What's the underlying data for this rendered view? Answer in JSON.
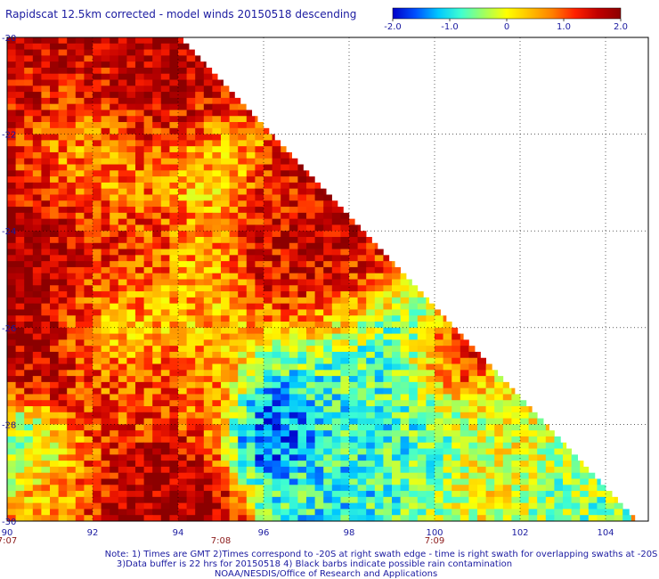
{
  "chart_data": {
    "type": "heatmap",
    "title": "Rapidscat 12.5km corrected - model winds 20150518 descending",
    "colorbar": {
      "range": [
        -2.0,
        2.0
      ],
      "tick_labels": [
        "-2.0",
        "-1.0",
        "0",
        "1.0",
        "2.0"
      ],
      "tick_values": [
        -2.0,
        -1.0,
        0.0,
        1.0,
        2.0
      ],
      "colors": [
        "#0000c8",
        "#0050ff",
        "#00c8ff",
        "#40ffd0",
        "#a0ff60",
        "#ffff00",
        "#ffc000",
        "#ff8000",
        "#ff2000",
        "#c00000",
        "#8c0000"
      ]
    },
    "x_axis": {
      "range": [
        90,
        105
      ],
      "tick_values": [
        90,
        92,
        94,
        96,
        98,
        100,
        102,
        104
      ],
      "tick_labels": [
        "90",
        "92",
        "94",
        "96",
        "98",
        "100",
        "102",
        "104"
      ]
    },
    "y_axis": {
      "range": [
        -30,
        -20
      ],
      "tick_values": [
        -20,
        -22,
        -24,
        -26,
        -28,
        -30
      ],
      "tick_labels": [
        "-20",
        "-22",
        "-24",
        "-26",
        "-28",
        "-30"
      ]
    },
    "time_labels": [
      {
        "x": 90,
        "label": "7:07"
      },
      {
        "x": 95,
        "label": "7:08"
      },
      {
        "x": 100,
        "label": "7:09"
      }
    ],
    "swath_edge": {
      "from": [
        94,
        -20
      ],
      "to": [
        104.7,
        -30
      ]
    },
    "regions": [
      {
        "lon": 91.5,
        "lat": -21.0,
        "value": 1.6,
        "r": 2.2
      },
      {
        "lon": 93.5,
        "lat": -21.2,
        "value": 1.9,
        "r": 1.4
      },
      {
        "lon": 92.0,
        "lat": -22.5,
        "value": -0.1,
        "r": 1.3
      },
      {
        "lon": 94.5,
        "lat": -22.6,
        "value": 0.1,
        "r": 1.0
      },
      {
        "lon": 91.0,
        "lat": -24.6,
        "value": 2.0,
        "r": 1.5
      },
      {
        "lon": 93.0,
        "lat": -24.2,
        "value": 1.2,
        "r": 1.0
      },
      {
        "lon": 94.5,
        "lat": -25.0,
        "value": 0.4,
        "r": 1.0
      },
      {
        "lon": 97.0,
        "lat": -24.8,
        "value": 1.9,
        "r": 1.4
      },
      {
        "lon": 96.5,
        "lat": -23.8,
        "value": 1.3,
        "r": 0.9
      },
      {
        "lon": 92.2,
        "lat": -25.8,
        "value": 0.2,
        "r": 1.0
      },
      {
        "lon": 90.8,
        "lat": -26.6,
        "value": 1.7,
        "r": 1.0
      },
      {
        "lon": 97.5,
        "lat": -27.2,
        "value": -0.9,
        "r": 1.8
      },
      {
        "lon": 96.2,
        "lat": -27.8,
        "value": -1.9,
        "r": 0.8
      },
      {
        "lon": 99.5,
        "lat": -27.7,
        "value": -0.7,
        "r": 1.2
      },
      {
        "lon": 100.4,
        "lat": -26.8,
        "value": 1.7,
        "r": 0.7
      },
      {
        "lon": 101.5,
        "lat": -28.5,
        "value": 0.0,
        "r": 1.2
      },
      {
        "lon": 103.0,
        "lat": -29.3,
        "value": -0.5,
        "r": 0.9
      },
      {
        "lon": 91.0,
        "lat": -29.2,
        "value": 0.6,
        "r": 0.9
      },
      {
        "lon": 93.5,
        "lat": -29.5,
        "value": 1.8,
        "r": 1.2
      },
      {
        "lon": 90.4,
        "lat": -28.4,
        "value": -0.6,
        "r": 0.8
      },
      {
        "lon": 92.6,
        "lat": -27.6,
        "value": 1.0,
        "r": 1.0
      },
      {
        "lon": 94.8,
        "lat": -27.2,
        "value": 0.9,
        "r": 0.9
      }
    ],
    "notes": [
      "Note: 1) Times are GMT 2)Times correspond to -20S at right swath edge - time is right swath for overlapping swaths at -20S",
      "3)Data buffer is 22 hrs for 20150518 4) Black barbs indicate possible rain contamination",
      "NOAA/NESDIS/Office of Research and Applications"
    ]
  }
}
